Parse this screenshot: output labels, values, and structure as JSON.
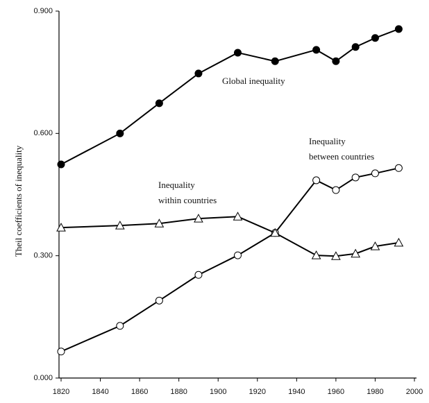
{
  "chart_data": {
    "type": "line",
    "y_label": "Theil coefficients of inequality",
    "x": [
      1820,
      1850,
      1870,
      1890,
      1910,
      1929,
      1950,
      1960,
      1970,
      1980,
      1992
    ],
    "series": [
      {
        "marker": "circle-filled",
        "color": "#000000",
        "values": [
          0.524,
          0.6,
          0.674,
          0.747,
          0.798,
          0.777,
          0.805,
          0.777,
          0.812,
          0.834,
          0.856
        ]
      },
      {
        "marker": "circle-open",
        "color": "#000000",
        "values": [
          0.065,
          0.128,
          0.19,
          0.253,
          0.301,
          0.356,
          0.485,
          0.461,
          0.492,
          0.502,
          0.515
        ]
      },
      {
        "marker": "triangle-open",
        "color": "#000000",
        "values": [
          0.369,
          0.374,
          0.379,
          0.391,
          0.396,
          0.356,
          0.301,
          0.299,
          0.305,
          0.323,
          0.332
        ]
      }
    ],
    "annotations": [
      {
        "lines": [
          "Global inequality"
        ]
      },
      {
        "lines": [
          "Inequality",
          "between countries"
        ]
      },
      {
        "lines": [
          "Inequality",
          "within countries"
        ]
      }
    ],
    "xlim": [
      1820,
      2000
    ],
    "xticks": [
      1820,
      1840,
      1860,
      1880,
      1900,
      1920,
      1940,
      1960,
      1980,
      2000
    ],
    "ylim": [
      0,
      0.9
    ],
    "yticks": [
      {
        "value": 0,
        "label": "0.000"
      },
      {
        "value": 0.3,
        "label": "0.300"
      },
      {
        "value": 0.6,
        "label": "0.600"
      },
      {
        "value": 0.9,
        "label": "0.900"
      }
    ]
  }
}
